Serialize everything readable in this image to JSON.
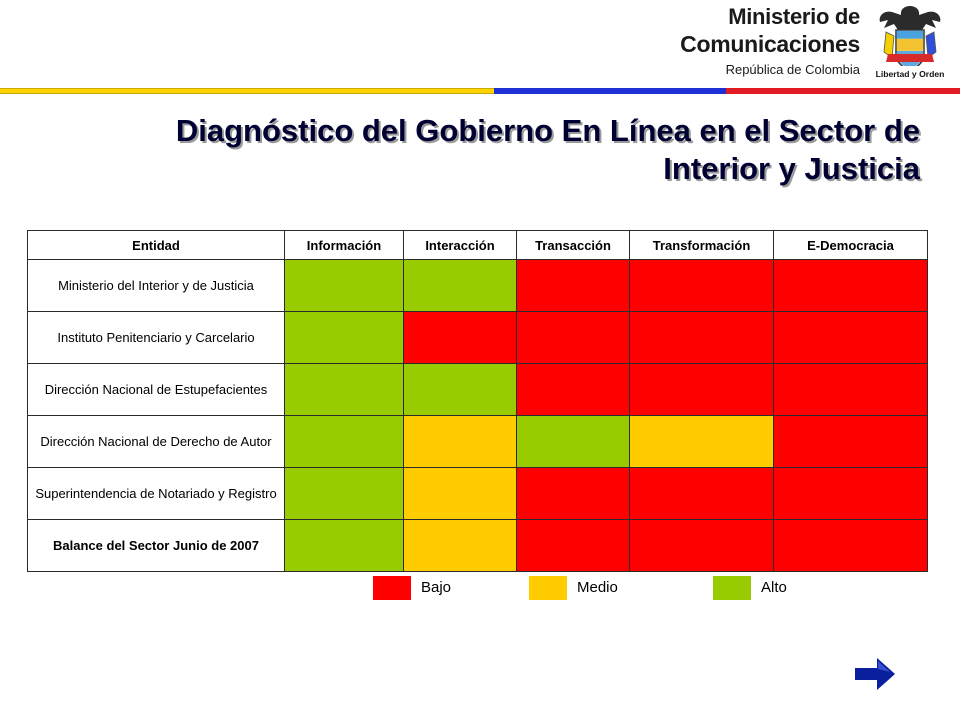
{
  "header": {
    "ministry_line1": "Ministerio de",
    "ministry_line2": "Comunicaciones",
    "country": "República de Colombia",
    "motto": "Libertad y Orden"
  },
  "colors": {
    "flag_yellow": "#ffd400",
    "flag_blue": "#1f2fd6",
    "flag_red": "#e31b23",
    "alto": "#99cc00",
    "medio": "#ffcc00",
    "bajo": "#ff0000"
  },
  "title": {
    "line1": "Diagnóstico del Gobierno En Línea en el Sector de",
    "line2": "Interior y Justicia"
  },
  "table": {
    "headers": [
      "Entidad",
      "Información",
      "Interacción",
      "Transacción",
      "Transformación",
      "E-Democracia"
    ],
    "rows": [
      {
        "entity": "Ministerio del Interior y de Justicia",
        "levels": [
          "alto",
          "alto",
          "bajo",
          "bajo",
          "bajo"
        ]
      },
      {
        "entity": "Instituto Penitenciario y Carcelario",
        "levels": [
          "alto",
          "bajo",
          "bajo",
          "bajo",
          "bajo"
        ]
      },
      {
        "entity": "Dirección Nacional de Estupefacientes",
        "levels": [
          "alto",
          "alto",
          "bajo",
          "bajo",
          "bajo"
        ]
      },
      {
        "entity": "Dirección Nacional de Derecho de Autor",
        "levels": [
          "alto",
          "medio",
          "alto",
          "medio",
          "bajo"
        ]
      },
      {
        "entity": "Superintendencia de Notariado y Registro",
        "levels": [
          "alto",
          "medio",
          "bajo",
          "bajo",
          "bajo"
        ]
      },
      {
        "entity": "Balance del Sector Junio de 2007",
        "levels": [
          "alto",
          "medio",
          "bajo",
          "bajo",
          "bajo"
        ],
        "bold": true
      }
    ]
  },
  "legend": [
    {
      "key": "bajo",
      "label": "Bajo"
    },
    {
      "key": "medio",
      "label": "Medio"
    },
    {
      "key": "alto",
      "label": "Alto"
    }
  ],
  "navigation": {
    "next_icon": "right-arrow-icon"
  }
}
